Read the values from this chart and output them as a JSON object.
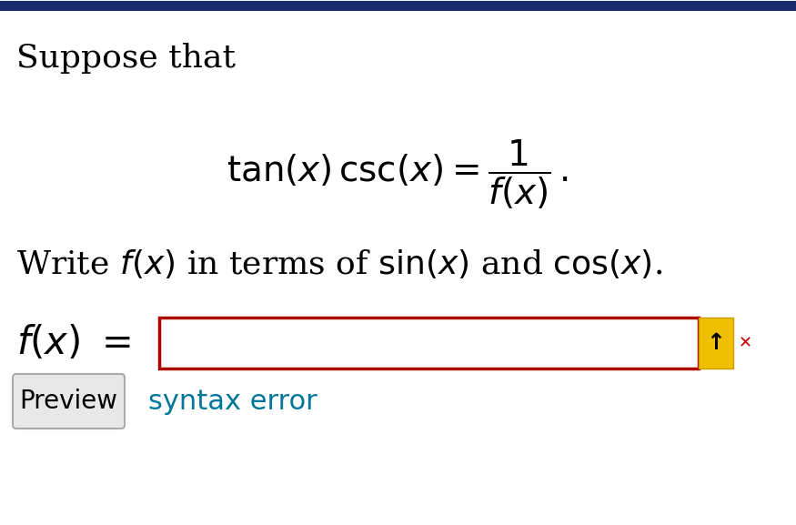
{
  "bg_color": "#ffffff",
  "border_color": "#1a2a6e",
  "text_suppose": "Suppose that",
  "equation_main": "$\\tan(x)\\,\\csc(x) = \\dfrac{1}{f(x)}\\,.$",
  "text_write": "Write $f(x)$ in terms of $\\sin(x)$ and $\\cos(x)$.",
  "input_box_border_color": "#aa0000",
  "input_box_color": "#ffffff",
  "arrow_button_color": "#f0c000",
  "arrow_button_border": "#cc9900",
  "preview_button_text": "Preview",
  "preview_button_bg": "#e8e8e8",
  "preview_button_border": "#aaaaaa",
  "syntax_error_text": "syntax error",
  "syntax_error_color": "#007799"
}
